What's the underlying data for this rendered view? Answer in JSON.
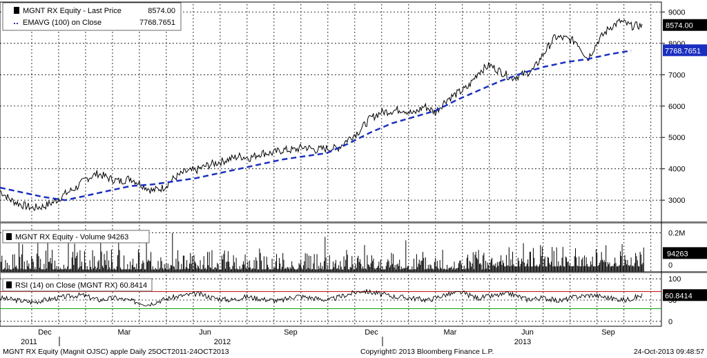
{
  "colors": {
    "price": "#000000",
    "ema": "#1a2fbf",
    "rsi_line": "#000000",
    "overbought": "#c00000",
    "oversold": "#00a000",
    "grid": "#000000"
  },
  "chart_data": [
    {
      "type": "line",
      "panel": "price",
      "legend": [
        {
          "label": "MGNT RX Equity - Last Price",
          "value": "8574.00"
        },
        {
          "label": "EMAVG (100) on Close",
          "value": "7768.7651"
        }
      ],
      "ylim": [
        2300,
        9250
      ],
      "yticks": [
        "9000",
        "8000",
        "7000",
        "6000",
        "5000",
        "4000",
        "3000"
      ],
      "series": [
        {
          "name": "MGNT RX Equity - Last Price",
          "x_days": [
            0,
            10,
            20,
            30,
            40,
            50,
            60,
            70,
            80,
            90,
            100,
            110,
            120,
            130,
            140,
            150,
            160,
            170,
            180,
            190,
            200,
            210,
            220,
            230,
            240,
            250,
            260,
            270,
            280,
            290,
            300,
            310,
            320,
            330,
            340,
            350,
            360,
            370,
            380,
            390,
            400,
            410,
            420,
            430,
            440,
            450,
            460,
            470,
            480,
            490,
            500,
            510,
            520,
            530,
            540,
            550,
            560,
            570,
            580,
            590,
            600,
            610,
            620,
            630,
            640,
            650,
            660,
            670,
            680,
            690,
            700,
            710,
            720,
            730
          ],
          "values": [
            3300,
            3000,
            2850,
            2750,
            2800,
            2950,
            3200,
            3400,
            3700,
            3850,
            3700,
            3600,
            3700,
            3500,
            3300,
            3400,
            3700,
            3900,
            3950,
            4100,
            4200,
            4300,
            4400,
            4350,
            4500,
            4500,
            4600,
            4600,
            4700,
            4600,
            4650,
            4650,
            4950,
            5200,
            5600,
            5800,
            5850,
            5900,
            5750,
            6000,
            5800,
            6200,
            6400,
            6600,
            7100,
            7300,
            7100,
            6900,
            7000,
            7150,
            7700,
            8200,
            8150,
            8050,
            7500,
            8100,
            8500,
            8700,
            8550,
            8574,
            8574,
            8574,
            8574,
            8574,
            8574,
            8574,
            8574,
            8574,
            8574,
            8574,
            8574,
            8574,
            8574,
            8574
          ]
        },
        {
          "name": "EMAVG (100) on Close",
          "style": "dashed",
          "x_days": [
            0,
            20,
            40,
            60,
            80,
            100,
            120,
            140,
            160,
            180,
            200,
            220,
            240,
            260,
            280,
            300,
            320,
            340,
            360,
            380,
            400,
            420,
            440,
            460,
            480,
            500,
            520,
            540,
            560,
            580
          ],
          "values": [
            3400,
            3250,
            3100,
            3000,
            3150,
            3300,
            3450,
            3500,
            3600,
            3700,
            3850,
            4000,
            4150,
            4300,
            4400,
            4500,
            4800,
            5150,
            5450,
            5650,
            5850,
            6200,
            6500,
            6800,
            7050,
            7250,
            7400,
            7500,
            7650,
            7768.7651
          ]
        }
      ],
      "last_labels": [
        "8574.00",
        "7768.7651"
      ]
    },
    {
      "type": "bar",
      "panel": "volume",
      "legend": [
        {
          "label": "MGNT RX Equity - Volume",
          "value": "94263"
        }
      ],
      "yticks": [
        "0.2M",
        "0"
      ],
      "ylim_millions": [
        0,
        0.24
      ],
      "last_label": "94263"
    },
    {
      "type": "line",
      "panel": "rsi",
      "legend": [
        {
          "label": "RSI (14) on Close (MGNT RX)",
          "value": "60.8414"
        }
      ],
      "ylim": [
        -10,
        110
      ],
      "yticks": [
        "100",
        "50",
        "0"
      ],
      "overbought": 70,
      "oversold": 30,
      "x_days": [
        0,
        15,
        30,
        45,
        60,
        75,
        90,
        105,
        120,
        135,
        150,
        165,
        180,
        195,
        210,
        225,
        240,
        255,
        270,
        285,
        300,
        315,
        330,
        345,
        360,
        375,
        390,
        405,
        420,
        435,
        450,
        465,
        480,
        495,
        510,
        525,
        540,
        555,
        570,
        585
      ],
      "values": [
        55,
        50,
        45,
        52,
        58,
        62,
        50,
        55,
        48,
        40,
        52,
        60,
        65,
        55,
        50,
        58,
        52,
        48,
        60,
        55,
        50,
        62,
        72,
        65,
        58,
        55,
        50,
        62,
        68,
        55,
        60,
        65,
        52,
        55,
        48,
        58,
        62,
        55,
        50,
        60.8414
      ],
      "last_label": "60.8414"
    }
  ],
  "x_axis": {
    "months": [
      "Dec",
      "Mar",
      "Jun",
      "Sep",
      "Dec",
      "Mar",
      "Jun",
      "Sep"
    ],
    "years": [
      "2011",
      "2012",
      "2013"
    ]
  },
  "footer": {
    "left": "MGNT RX Equity (Magnit OJSC) apple  Daily 25OCT2011-24OCT2013",
    "center": "Copyright© 2013 Bloomberg Finance L.P.",
    "right": "24-Oct-2013 09:48:57"
  }
}
